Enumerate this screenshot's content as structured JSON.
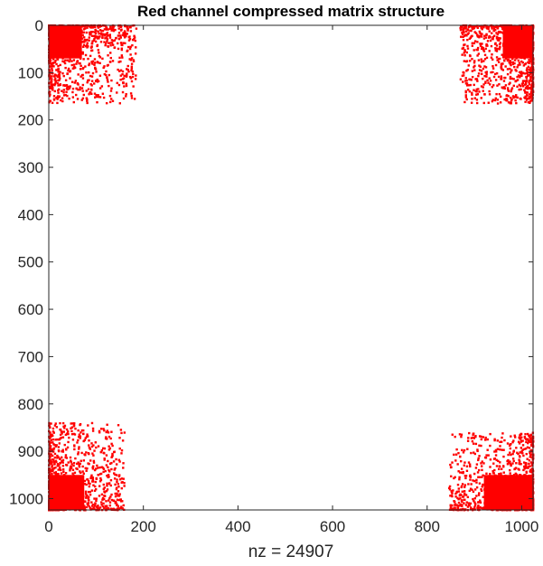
{
  "chart_data": {
    "type": "scatter",
    "chart_kind": "sparsity-pattern (spy plot)",
    "title": "Red channel compressed matrix structure",
    "xlabel": "nz = 24907",
    "ylabel": "",
    "matrix_size": [
      1024,
      1024
    ],
    "nonzeros": 24907,
    "xlim": [
      0,
      1024
    ],
    "ylim": [
      1024,
      0
    ],
    "y_axis_reversed": true,
    "x_ticks": [
      0,
      200,
      400,
      600,
      800,
      1000
    ],
    "y_ticks": [
      0,
      100,
      200,
      300,
      400,
      500,
      600,
      700,
      800,
      900,
      1000
    ],
    "marker_color": "#ff0000",
    "axis_color": "#262626",
    "background_color": "#ffffff",
    "grid": false,
    "clusters": [
      {
        "name": "top-left",
        "dense_x": [
          0,
          70
        ],
        "dense_y": [
          0,
          70
        ],
        "sparse_x": [
          0,
          185
        ],
        "sparse_y": [
          0,
          165
        ]
      },
      {
        "name": "top-right",
        "dense_x": [
          960,
          1024
        ],
        "dense_y": [
          0,
          70
        ],
        "sparse_x": [
          870,
          1024
        ],
        "sparse_y": [
          0,
          165
        ]
      },
      {
        "name": "bottom-left",
        "dense_x": [
          0,
          75
        ],
        "dense_y": [
          950,
          1024
        ],
        "sparse_x": [
          0,
          160
        ],
        "sparse_y": [
          840,
          1024
        ]
      },
      {
        "name": "bottom-right",
        "dense_x": [
          920,
          1024
        ],
        "dense_y": [
          950,
          1024
        ],
        "sparse_x": [
          845,
          1024
        ],
        "sparse_y": [
          860,
          1024
        ]
      }
    ]
  }
}
